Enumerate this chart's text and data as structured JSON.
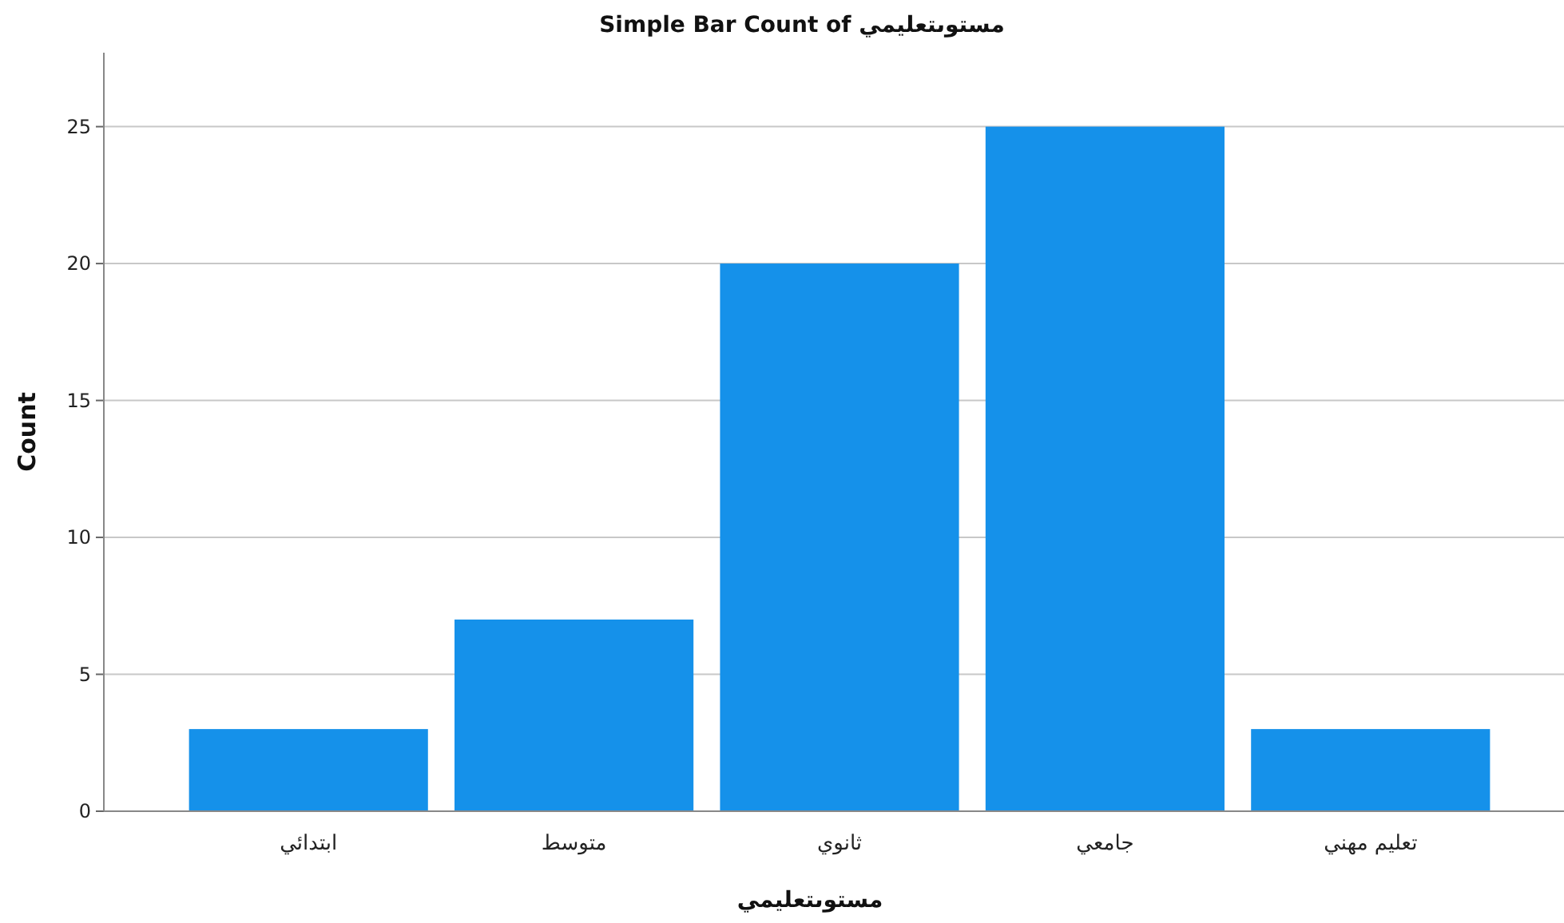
{
  "chart_data": {
    "type": "bar",
    "title": "Simple Bar Count of مستوىتعليمي",
    "xlabel": "مستوىتعليمي",
    "ylabel": "Count",
    "categories": [
      "ابتدائي",
      "متوسط",
      "ثانوي",
      "جامعي",
      "تعليم مهني"
    ],
    "values": [
      3,
      7,
      20,
      25,
      3
    ],
    "color": "#1591ea",
    "ylim": [
      0,
      27.7
    ],
    "yticks": [
      0,
      5,
      10,
      15,
      20,
      25
    ],
    "grid": "y"
  }
}
